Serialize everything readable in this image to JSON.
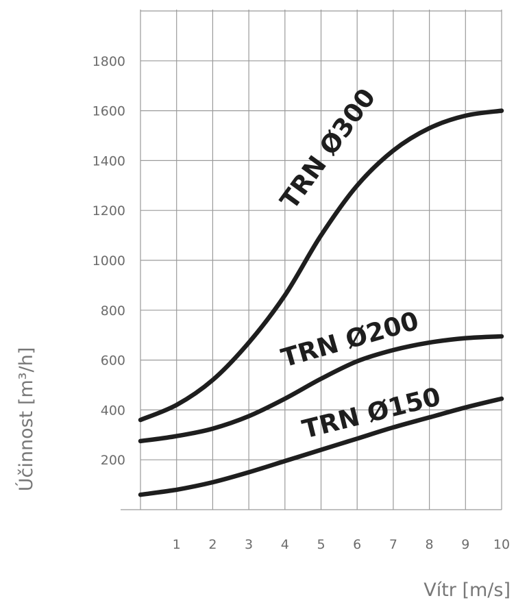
{
  "chart_data": {
    "type": "line",
    "xlabel": "Vítr [m/s]",
    "ylabel": "Účinnost [m³/h]",
    "xlim": [
      0,
      10
    ],
    "ylim": [
      0,
      2000
    ],
    "x_ticks": [
      1,
      2,
      3,
      4,
      5,
      6,
      7,
      8,
      9,
      10
    ],
    "y_ticks": [
      200,
      400,
      600,
      800,
      1000,
      1200,
      1400,
      1600,
      1800
    ],
    "grid": true,
    "series": [
      {
        "name": "TRN Ø300",
        "x": [
          0,
          1,
          2,
          3,
          4,
          5,
          6,
          7,
          8,
          9,
          10
        ],
        "y": [
          360,
          420,
          520,
          670,
          860,
          1100,
          1300,
          1440,
          1530,
          1580,
          1600
        ]
      },
      {
        "name": "TRN Ø200",
        "x": [
          0,
          1,
          2,
          3,
          4,
          5,
          6,
          7,
          8,
          9,
          10
        ],
        "y": [
          275,
          295,
          325,
          375,
          445,
          525,
          595,
          640,
          670,
          688,
          695
        ]
      },
      {
        "name": "TRN Ø150",
        "x": [
          0,
          1,
          2,
          3,
          4,
          5,
          6,
          7,
          8,
          9,
          10
        ],
        "y": [
          60,
          80,
          110,
          150,
          195,
          240,
          285,
          330,
          370,
          410,
          445
        ]
      }
    ]
  }
}
